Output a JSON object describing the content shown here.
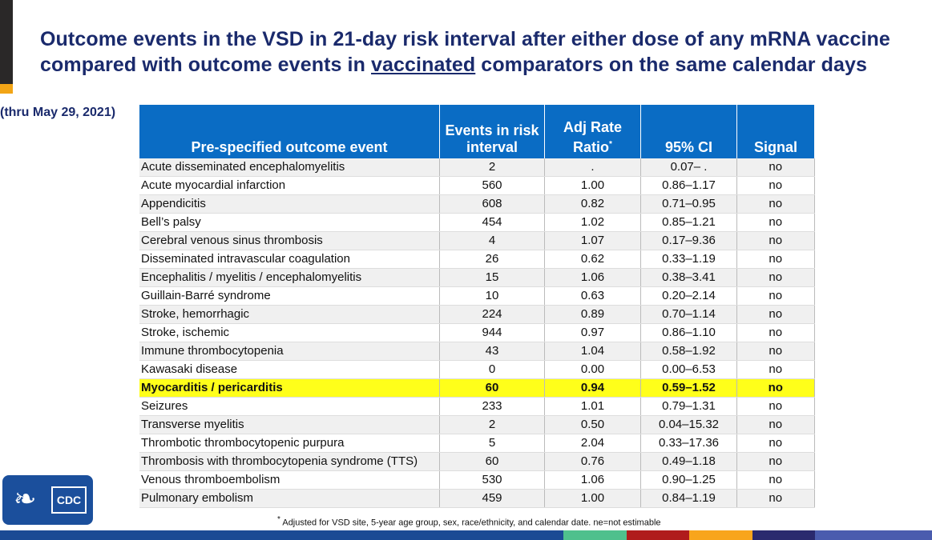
{
  "title": {
    "line1": "Outcome events in the VSD in 21-day risk interval after either dose of any mRNA vaccine",
    "line2_pre": "compared with outcome events in ",
    "line2_underlined": "vaccinated",
    "line2_post": " comparators on the same calendar days"
  },
  "subtitle": "(thru May 29, 2021)",
  "table": {
    "headers": [
      "Pre-specified outcome event",
      "Events in risk interval",
      "Adj Rate Ratio",
      "95% CI",
      "Signal"
    ],
    "header_rr_sup": "*",
    "highlight_row": 12,
    "rows": [
      [
        "Acute disseminated encephalomyelitis",
        "2",
        ".",
        "0.07– .",
        "no"
      ],
      [
        "Acute myocardial infarction",
        "560",
        "1.00",
        "0.86–1.17",
        "no"
      ],
      [
        "Appendicitis",
        "608",
        "0.82",
        "0.71–0.95",
        "no"
      ],
      [
        "Bell’s palsy",
        "454",
        "1.02",
        "0.85–1.21",
        "no"
      ],
      [
        "Cerebral venous sinus thrombosis",
        "4",
        "1.07",
        "0.17–9.36",
        "no"
      ],
      [
        "Disseminated intravascular coagulation",
        "26",
        "0.62",
        "0.33–1.19",
        "no"
      ],
      [
        "Encephalitis / myelitis / encephalomyelitis",
        "15",
        "1.06",
        "0.38–3.41",
        "no"
      ],
      [
        "Guillain-Barré syndrome",
        "10",
        "0.63",
        "0.20–2.14",
        "no"
      ],
      [
        "Stroke, hemorrhagic",
        "224",
        "0.89",
        "0.70–1.14",
        "no"
      ],
      [
        "Stroke, ischemic",
        "944",
        "0.97",
        "0.86–1.10",
        "no"
      ],
      [
        "Immune thrombocytopenia",
        "43",
        "1.04",
        "0.58–1.92",
        "no"
      ],
      [
        "Kawasaki disease",
        "0",
        "0.00",
        "0.00–6.53",
        "no"
      ],
      [
        "Myocarditis / pericarditis",
        "60",
        "0.94",
        "0.59–1.52",
        "no"
      ],
      [
        "Seizures",
        "233",
        "1.01",
        "0.79–1.31",
        "no"
      ],
      [
        "Transverse myelitis",
        "2",
        "0.50",
        "0.04–15.32",
        "no"
      ],
      [
        "Thrombotic thrombocytopenic purpura",
        "5",
        "2.04",
        "0.33–17.36",
        "no"
      ],
      [
        "Thrombosis with thrombocytopenia syndrome (TTS)",
        "60",
        "0.76",
        "0.49–1.18",
        "no"
      ],
      [
        "Venous thromboembolism",
        "530",
        "1.06",
        "0.90–1.25",
        "no"
      ],
      [
        "Pulmonary embolism",
        "459",
        "1.00",
        "0.84–1.19",
        "no"
      ]
    ]
  },
  "footnote": {
    "sup": "*",
    "text": " Adjusted for VSD site, 5-year age group, sex, race/ethnicity, and calendar date. ne=not estimable"
  },
  "logo": {
    "text": "CDC"
  },
  "colors": {
    "title": "#1a2a6c",
    "header": "#0a6cc4",
    "highlight": "#ffff1a",
    "bar": [
      "#1b4a94",
      "#4fc08d",
      "#b01c1c",
      "#f8a51c",
      "#2a2a6e",
      "#4a5cae"
    ]
  }
}
